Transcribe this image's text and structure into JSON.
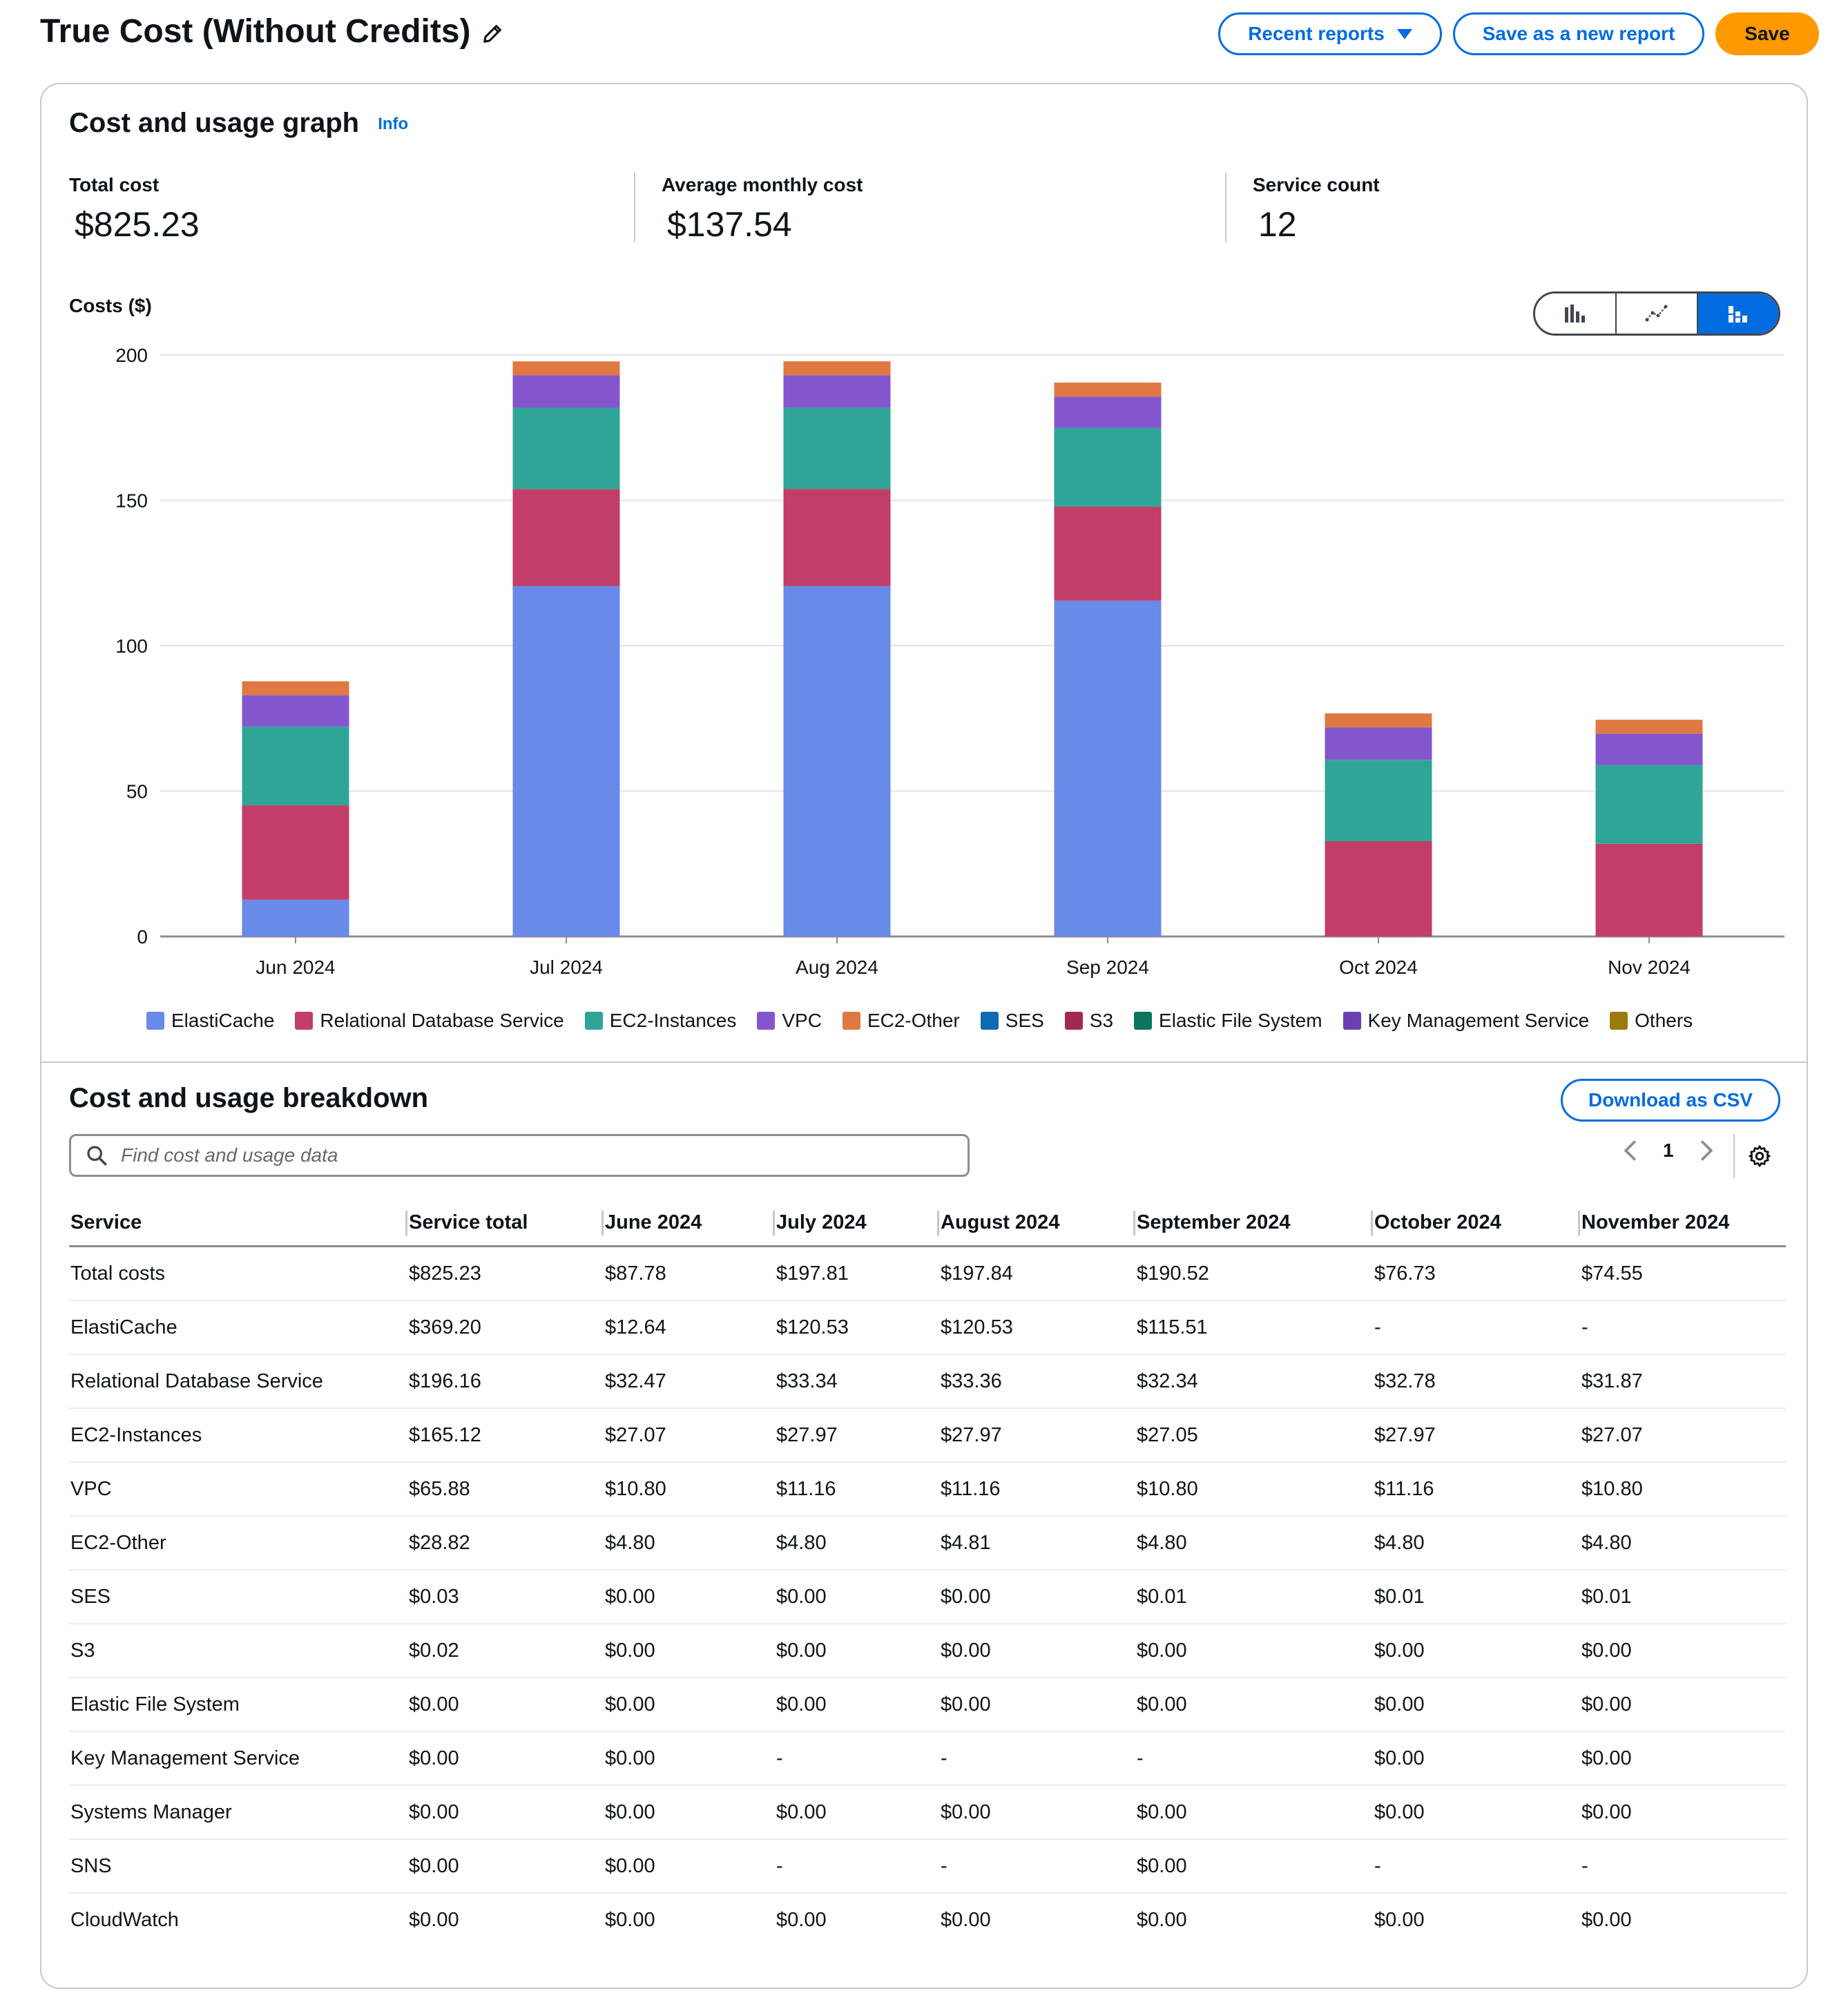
{
  "header": {
    "title": "True Cost (Without Credits)",
    "recent_reports_label": "Recent reports",
    "save_new_label": "Save as a new report",
    "save_label": "Save"
  },
  "graph": {
    "title": "Cost and usage graph",
    "info_label": "Info",
    "kpis": [
      {
        "label": "Total cost",
        "value": "$825.23"
      },
      {
        "label": "Average monthly cost",
        "value": "$137.54"
      },
      {
        "label": "Service count",
        "value": "12"
      }
    ],
    "chart_types": [
      "bar-chart-icon",
      "line-chart-icon",
      "stacked-bar-chart-icon"
    ],
    "selected_chart_type": "stacked-bar-chart-icon"
  },
  "chart_data": {
    "type": "bar",
    "stacked": true,
    "title": "",
    "ylabel": "Costs ($)",
    "xlabel": "",
    "ylim": [
      0,
      200
    ],
    "yticks": [
      0,
      50,
      100,
      150,
      200
    ],
    "categories": [
      "Jun 2024",
      "Jul 2024",
      "Aug 2024",
      "Sep 2024",
      "Oct 2024",
      "Nov 2024"
    ],
    "series": [
      {
        "name": "ElastiCache",
        "color": "#688ae8",
        "values": [
          12.64,
          120.53,
          120.53,
          115.51,
          0,
          0
        ]
      },
      {
        "name": "Relational Database Service",
        "color": "#c33d69",
        "values": [
          32.47,
          33.34,
          33.36,
          32.34,
          32.78,
          31.87
        ]
      },
      {
        "name": "EC2-Instances",
        "color": "#2ea597",
        "values": [
          27.07,
          27.97,
          27.97,
          27.05,
          27.97,
          27.07
        ]
      },
      {
        "name": "VPC",
        "color": "#8456ce",
        "values": [
          10.8,
          11.16,
          11.16,
          10.8,
          11.16,
          10.8
        ]
      },
      {
        "name": "EC2-Other",
        "color": "#e07941",
        "values": [
          4.8,
          4.8,
          4.81,
          4.8,
          4.8,
          4.8
        ]
      },
      {
        "name": "SES",
        "color": "#0f6ab4",
        "values": [
          0.0,
          0.0,
          0.0,
          0.01,
          0.01,
          0.01
        ]
      },
      {
        "name": "S3",
        "color": "#a32952",
        "values": [
          0.0,
          0.0,
          0.0,
          0.0,
          0.0,
          0.0
        ]
      },
      {
        "name": "Elastic File System",
        "color": "#0d7560",
        "values": [
          0.0,
          0.0,
          0.0,
          0.0,
          0.0,
          0.0
        ]
      },
      {
        "name": "Key Management Service",
        "color": "#6b40b2",
        "values": [
          0.0,
          0,
          0,
          0,
          0.0,
          0.0
        ]
      },
      {
        "name": "Others",
        "color": "#9c7a0c",
        "values": [
          0.0,
          0.0,
          0.0,
          0.0,
          0.0,
          0.0
        ]
      }
    ],
    "legend_position": "bottom"
  },
  "breakdown": {
    "title": "Cost and usage breakdown",
    "download_label": "Download as CSV",
    "search_placeholder": "Find cost and usage data",
    "current_page": "1",
    "columns": [
      "Service",
      "Service total",
      "June 2024",
      "July 2024",
      "August 2024",
      "September 2024",
      "October 2024",
      "November 2024"
    ],
    "rows": [
      [
        "Total costs",
        "$825.23",
        "$87.78",
        "$197.81",
        "$197.84",
        "$190.52",
        "$76.73",
        "$74.55"
      ],
      [
        "ElastiCache",
        "$369.20",
        "$12.64",
        "$120.53",
        "$120.53",
        "$115.51",
        "-",
        "-"
      ],
      [
        "Relational Database Service",
        "$196.16",
        "$32.47",
        "$33.34",
        "$33.36",
        "$32.34",
        "$32.78",
        "$31.87"
      ],
      [
        "EC2-Instances",
        "$165.12",
        "$27.07",
        "$27.97",
        "$27.97",
        "$27.05",
        "$27.97",
        "$27.07"
      ],
      [
        "VPC",
        "$65.88",
        "$10.80",
        "$11.16",
        "$11.16",
        "$10.80",
        "$11.16",
        "$10.80"
      ],
      [
        "EC2-Other",
        "$28.82",
        "$4.80",
        "$4.80",
        "$4.81",
        "$4.80",
        "$4.80",
        "$4.80"
      ],
      [
        "SES",
        "$0.03",
        "$0.00",
        "$0.00",
        "$0.00",
        "$0.01",
        "$0.01",
        "$0.01"
      ],
      [
        "S3",
        "$0.02",
        "$0.00",
        "$0.00",
        "$0.00",
        "$0.00",
        "$0.00",
        "$0.00"
      ],
      [
        "Elastic File System",
        "$0.00",
        "$0.00",
        "$0.00",
        "$0.00",
        "$0.00",
        "$0.00",
        "$0.00"
      ],
      [
        "Key Management Service",
        "$0.00",
        "$0.00",
        "-",
        "-",
        "-",
        "$0.00",
        "$0.00"
      ],
      [
        "Systems Manager",
        "$0.00",
        "$0.00",
        "$0.00",
        "$0.00",
        "$0.00",
        "$0.00",
        "$0.00"
      ],
      [
        "SNS",
        "$0.00",
        "$0.00",
        "-",
        "-",
        "$0.00",
        "-",
        "-"
      ],
      [
        "CloudWatch",
        "$0.00",
        "$0.00",
        "$0.00",
        "$0.00",
        "$0.00",
        "$0.00",
        "$0.00"
      ]
    ]
  }
}
